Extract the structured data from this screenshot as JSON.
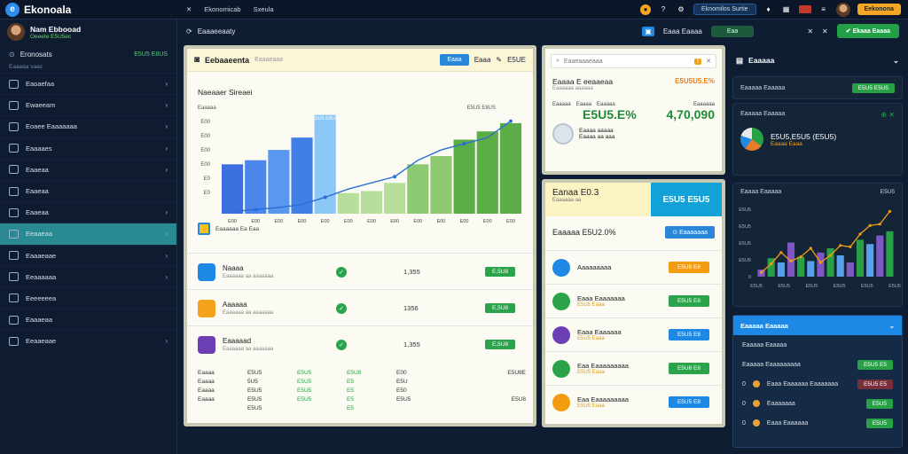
{
  "app": {
    "name": "Ekonoala"
  },
  "topnav": {
    "items": [
      "Ekonomicab",
      "Sxeula"
    ],
    "search": "Eknomilos Surtie",
    "action": "Eekonona"
  },
  "sidebar": {
    "user": {
      "name": "Nam Ebbooad",
      "sub": "Oeeete E5U5ec"
    },
    "account": {
      "label": "Eronosats",
      "value": "E5U5 E8US"
    },
    "section": "Eaaeaa vaac",
    "items": [
      {
        "label": "Eaoaefaa",
        "chev": true
      },
      {
        "label": "Ewaeeam",
        "chev": true
      },
      {
        "label": "Eoaee Eaaaaaaa",
        "chev": true
      },
      {
        "label": "Eaaaaes",
        "chev": true
      },
      {
        "label": "Eaaeaa",
        "chev": true
      },
      {
        "label": "Eaaeaa",
        "chev": false
      },
      {
        "label": "Eaaeaa",
        "chev": true
      },
      {
        "label": "Eeaaeaa",
        "chev": true,
        "active": true
      },
      {
        "label": "Eaaaeaae",
        "chev": true
      },
      {
        "label": "Eeaaaaaa",
        "chev": true
      },
      {
        "label": "Eeeeeeea",
        "chev": false
      },
      {
        "label": "Eaaaeaa",
        "chev": false
      },
      {
        "label": "Eeaaeaae",
        "chev": true
      }
    ]
  },
  "subbar": {
    "title": "Eaaaeeaaty",
    "btn1": "Eaaa Eaaaa",
    "btn2": "Eaa",
    "btn3": "Ekaaa Eaaaa"
  },
  "main": {
    "title": "Eebaaeenta",
    "placeholder": "Eaaaeaaa",
    "btns": [
      "Eaaa",
      "Eaaa",
      "E5UE"
    ],
    "chart_title": "Naeaaer Sireaei",
    "chart_legend": "Eaaaaaa Ea Eaa",
    "rows": [
      {
        "title": "Naaaa",
        "sub": "Eaaaaaa aa aaaaaaa",
        "value": "1,355",
        "badge": "E,5U8",
        "color": "#1e88e5"
      },
      {
        "title": "Aaaaaa",
        "sub": "Eaaaaaa aa aaaaaaa",
        "value": "1356",
        "badge": "E,5U8",
        "color": "#f3a21c"
      },
      {
        "title": "Eaaaaad",
        "sub": "Eaaaaaa aa aaaaaaa",
        "value": "1,355",
        "badge": "E,5U8",
        "color": "#6c3fb5"
      }
    ],
    "foot": {
      "head": [
        "Eaaaa",
        "E5U5",
        "E5U5",
        "E5U8",
        "E00",
        "E5U8E"
      ],
      "rows": [
        [
          "Eaaaa",
          "5U5",
          "E5U5",
          "E5",
          "E5U",
          ""
        ],
        [
          "Eaaaa",
          "E5U5",
          "E5U5",
          "E5",
          "E50",
          ""
        ],
        [
          "Eaaaa",
          "E5U5",
          "E5U5",
          "E5",
          "E5U5",
          "E5U8"
        ],
        [
          "",
          "E5U5",
          "",
          "E5",
          "",
          ""
        ]
      ]
    }
  },
  "chart_data": {
    "type": "bar",
    "categories": [
      "E00",
      "E00",
      "E00",
      "E00",
      "E00",
      "E00",
      "E00",
      "E00",
      "E00",
      "E00",
      "E00",
      "E00",
      "E00"
    ],
    "values": [
      48,
      52,
      62,
      74,
      96,
      20,
      22,
      30,
      48,
      56,
      72,
      80,
      88
    ],
    "line": [
      2,
      4,
      6,
      9,
      16,
      24,
      30,
      36,
      52,
      62,
      68,
      74,
      90
    ],
    "ylim": [
      0,
      100
    ],
    "ytick_labels": [
      "E00",
      "E00",
      "E00",
      "E00",
      "E0",
      "E0"
    ],
    "ylabel": "Eaaaaa",
    "ylabel_right": "E5U5 E8US",
    "peak_label": "E5U5 E8US"
  },
  "mid": {
    "search": "Eaaeaaaeaaa",
    "title": "Eaaaa E eeaaeaa",
    "value_top": "E5U5U5.E%",
    "sub": "Eaaaaaa aaaaaa",
    "labels": [
      "Eaaaaa",
      "Eaaaa",
      "Eaaaaa",
      "Eaaaaaa"
    ],
    "big1": "E5U5.E%",
    "big2": "4,70,090",
    "small": [
      "Eaaaa aaaaa",
      "Eaaaa aa aaa"
    ],
    "card2_title": "Eanaa E0.3",
    "card2_val": "E5U5 E5U5",
    "card2_sub": "Eaaaaaa aa",
    "card2_pct": "Eaaaaa E5U2.0%",
    "card2_btn": "Eaaaaaaa",
    "rows": [
      {
        "title": "Aaaaaaaaa",
        "sub": "",
        "btn": "E5U8 E8",
        "btnColor": "#f39c12",
        "icoColor": "#1e88e5"
      },
      {
        "title": "Eaaa Eaaaaaaa",
        "sub": "E5U5 Eaaa",
        "btn": "E5U5 E8",
        "btnColor": "#2aa34a",
        "icoColor": "#2aa34a"
      },
      {
        "title": "Eaaa Eaaaaaa",
        "sub": "E5U5 Eaaa",
        "btn": "E5U5 E8",
        "btnColor": "#1e88e5",
        "icoColor": "#6c3fb5"
      },
      {
        "title": "Eaa Eaaaaaaaaa",
        "sub": "E5U5 Eaaa",
        "btn": "E5U8 E8",
        "btnColor": "#2aa34a",
        "icoColor": "#2aa34a"
      },
      {
        "title": "Eaa Eaaaaaaaaa",
        "sub": "E5U5 Eaaa",
        "btn": "E5U5 E8",
        "btnColor": "#1e88e5",
        "icoColor": "#f39c12"
      }
    ]
  },
  "right": {
    "head": "Eaaaaa",
    "card1": {
      "title": "Eaaaaa Eaaaaa",
      "badge": "E5U5 E5U5"
    },
    "card2": {
      "title": "Eaaaaa Eaaaaa",
      "sub": "E5U5,E5U5 (E5U5)",
      "note": "Eaaaa Eaaa",
      "badge": "E5U5 E5U5"
    },
    "card3": {
      "title": "Eaaaa Eaaaaa",
      "badge": "E5U5",
      "yticks": [
        "E5U5",
        "E5U5",
        "E5U5",
        "E5U5",
        "0"
      ],
      "xticks": [
        "E5U5",
        "E5U5",
        "E5U5",
        "E5U5",
        "E5U5",
        "E5U5"
      ]
    },
    "chart_data": {
      "type": "bar",
      "values": [
        10,
        26,
        20,
        48,
        28,
        22,
        34,
        40,
        30,
        20,
        52,
        46,
        58,
        64
      ],
      "line": [
        6,
        18,
        34,
        22,
        28,
        40,
        20,
        30,
        44,
        42,
        60,
        72,
        74,
        92
      ],
      "ylim": [
        0,
        100
      ]
    },
    "blue": {
      "title": "Eaaaaa Eaaaaa",
      "row0": "Eaaaaa Eaaaaa",
      "row1": {
        "label": "Eaaaaa Eaaaaaaaaa",
        "badge": "E5U5 E5"
      },
      "rows": [
        {
          "label": "Eaaa Eaaaaaa Eaaaaaaa",
          "badge": "E5U5 E5",
          "badgeColor": "#7a2f3a"
        },
        {
          "label": "Eaaaaaaa",
          "badge": "E5U5",
          "badgeColor": "#27a046"
        },
        {
          "label": "Eaaa Eaaaaaa",
          "badge": "E5U5",
          "badgeColor": "#27a046"
        }
      ]
    }
  },
  "colors": {
    "accent": "#2d8cf0",
    "green": "#2aa34a",
    "orange": "#f39c12",
    "active": "#2a8a93"
  }
}
